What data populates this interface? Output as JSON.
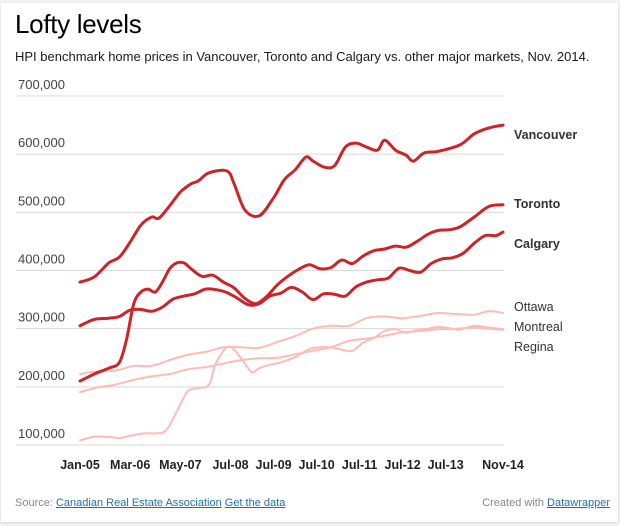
{
  "header": {
    "title": "Lofty levels",
    "subtitle": "HPI benchmark home prices in Vancouver, Toronto and Calgary vs. other major markets, Nov. 2014."
  },
  "footer": {
    "source_prefix": "Source:",
    "source_link": "Canadian Real Estate Association",
    "data_link": "Get the data",
    "created_prefix": "Created with",
    "created_link": "Datawrapper"
  },
  "colors": {
    "highlight": "#cc2529",
    "muted": "#ffbcb7",
    "grid": "#d9d9d9"
  },
  "chart_data": {
    "type": "line",
    "title": "Lofty levels",
    "subtitle": "HPI benchmark home prices in Vancouver, Toronto and Calgary vs. other major markets, Nov. 2014.",
    "xlabel": "",
    "ylabel": "",
    "ylim": [
      100000,
      700000
    ],
    "yticks": [
      100000,
      200000,
      300000,
      400000,
      500000,
      600000,
      700000
    ],
    "ytick_labels": [
      "100,000",
      "200,000",
      "300,000",
      "400,000",
      "500,000",
      "600,000",
      "700,000"
    ],
    "xlim_months_from_jan05": [
      0,
      118
    ],
    "xticks": [
      {
        "label": "Jan-05",
        "m": 0
      },
      {
        "label": "Mar-06",
        "m": 14
      },
      {
        "label": "May-07",
        "m": 28
      },
      {
        "label": "Jul-08",
        "m": 42
      },
      {
        "label": "Jul-09",
        "m": 54
      },
      {
        "label": "Jul-10",
        "m": 66
      },
      {
        "label": "Jul-11",
        "m": 78
      },
      {
        "label": "Jul-12",
        "m": 90
      },
      {
        "label": "Jul-13",
        "m": 102
      },
      {
        "label": "Nov-14",
        "m": 118
      }
    ],
    "grid": true,
    "legend": "direct-labels-right",
    "x_unit": "months since Jan-05",
    "series": [
      {
        "name": "Vancouver",
        "emphasis": "highlight",
        "m": [
          0,
          4,
          8,
          11,
          14,
          17,
          20,
          22,
          25,
          28,
          31,
          33,
          36,
          41,
          43,
          46,
          50,
          54,
          57,
          60,
          63,
          65,
          68,
          71,
          74,
          77,
          80,
          83,
          85,
          88,
          91,
          93,
          96,
          100,
          106,
          110,
          114,
          118
        ],
        "values": [
          380000,
          389000,
          413000,
          423000,
          449000,
          478000,
          492000,
          490000,
          511000,
          535000,
          549000,
          554000,
          568000,
          571000,
          549000,
          504000,
          494000,
          525000,
          556000,
          573000,
          595000,
          588000,
          578000,
          580000,
          612000,
          619000,
          612000,
          607000,
          624000,
          607000,
          598000,
          588000,
          602000,
          605000,
          616000,
          635000,
          645000,
          650000
        ]
      },
      {
        "name": "Toronto",
        "emphasis": "highlight",
        "m": [
          0,
          4,
          8,
          11,
          14,
          17,
          20,
          23,
          26,
          29,
          32,
          35,
          38,
          41,
          44,
          47,
          50,
          53,
          56,
          59,
          62,
          65,
          68,
          71,
          74,
          77,
          80,
          83,
          86,
          89,
          92,
          95,
          98,
          101,
          104,
          107,
          110,
          113,
          116,
          118
        ],
        "values": [
          305000,
          316000,
          318000,
          321000,
          332000,
          333000,
          330000,
          337000,
          351000,
          356000,
          360000,
          368000,
          367000,
          362000,
          352000,
          341000,
          343000,
          356000,
          361000,
          371000,
          363000,
          350000,
          360000,
          359000,
          356000,
          372000,
          380000,
          384000,
          387000,
          404000,
          400000,
          397000,
          412000,
          420000,
          422000,
          430000,
          447000,
          460000,
          460000,
          466000
        ]
      },
      {
        "name": "Calgary",
        "emphasis": "highlight",
        "m": [
          0,
          4,
          8,
          11,
          13,
          15,
          17,
          19,
          21,
          23,
          25,
          27,
          29,
          31,
          34,
          37,
          40,
          43,
          46,
          49,
          52,
          55,
          58,
          61,
          64,
          67,
          70,
          73,
          76,
          79,
          82,
          85,
          88,
          91,
          94,
          97,
          100,
          103,
          106,
          110,
          114,
          118
        ],
        "values": [
          210000,
          222000,
          232000,
          242000,
          282000,
          343000,
          363000,
          368000,
          363000,
          380000,
          403000,
          413000,
          413000,
          403000,
          390000,
          392000,
          380000,
          370000,
          352000,
          343000,
          355000,
          375000,
          390000,
          402000,
          410000,
          403000,
          405000,
          418000,
          412000,
          425000,
          434000,
          437000,
          442000,
          440000,
          450000,
          462000,
          469000,
          470000,
          475000,
          492000,
          510000,
          513000
        ]
      },
      {
        "name": "Ottawa",
        "emphasis": "muted",
        "m": [
          0,
          5,
          10,
          15,
          20,
          25,
          30,
          35,
          40,
          45,
          50,
          55,
          60,
          65,
          70,
          75,
          80,
          85,
          90,
          95,
          100,
          105,
          110,
          114,
          118
        ],
        "values": [
          222000,
          227000,
          228000,
          236000,
          236000,
          246000,
          255000,
          260000,
          268000,
          268000,
          267000,
          277000,
          287000,
          300000,
          305000,
          305000,
          318000,
          321000,
          318000,
          322000,
          327000,
          325000,
          324000,
          330000,
          327000
        ]
      },
      {
        "name": "Montreal",
        "emphasis": "muted",
        "m": [
          0,
          5,
          10,
          15,
          20,
          25,
          30,
          35,
          40,
          45,
          50,
          55,
          60,
          65,
          70,
          75,
          80,
          85,
          90,
          95,
          100,
          105,
          110,
          114,
          118
        ],
        "values": [
          191000,
          199000,
          204000,
          212000,
          218000,
          222000,
          230000,
          234000,
          240000,
          246000,
          249000,
          250000,
          256000,
          262000,
          268000,
          279000,
          283000,
          288000,
          294000,
          296000,
          299000,
          300000,
          302000,
          300000,
          298000
        ]
      },
      {
        "name": "Regina",
        "emphasis": "muted",
        "m": [
          0,
          4,
          8,
          11,
          14,
          18,
          21,
          24,
          27,
          30,
          33,
          36,
          38,
          41,
          43,
          46,
          48,
          50,
          53,
          56,
          60,
          64,
          67,
          70,
          73,
          76,
          79,
          82,
          85,
          88,
          91,
          94,
          97,
          100,
          103,
          106,
          110,
          114,
          118
        ],
        "values": [
          108000,
          114000,
          114000,
          112000,
          116000,
          120000,
          120000,
          125000,
          158000,
          192000,
          198000,
          204000,
          242000,
          268000,
          264000,
          240000,
          225000,
          232000,
          238000,
          242000,
          251000,
          265000,
          268000,
          268000,
          264000,
          262000,
          276000,
          284000,
          296000,
          299000,
          293000,
          298000,
          300000,
          303000,
          301000,
          298000,
          305000,
          302000,
          299000
        ]
      }
    ]
  }
}
